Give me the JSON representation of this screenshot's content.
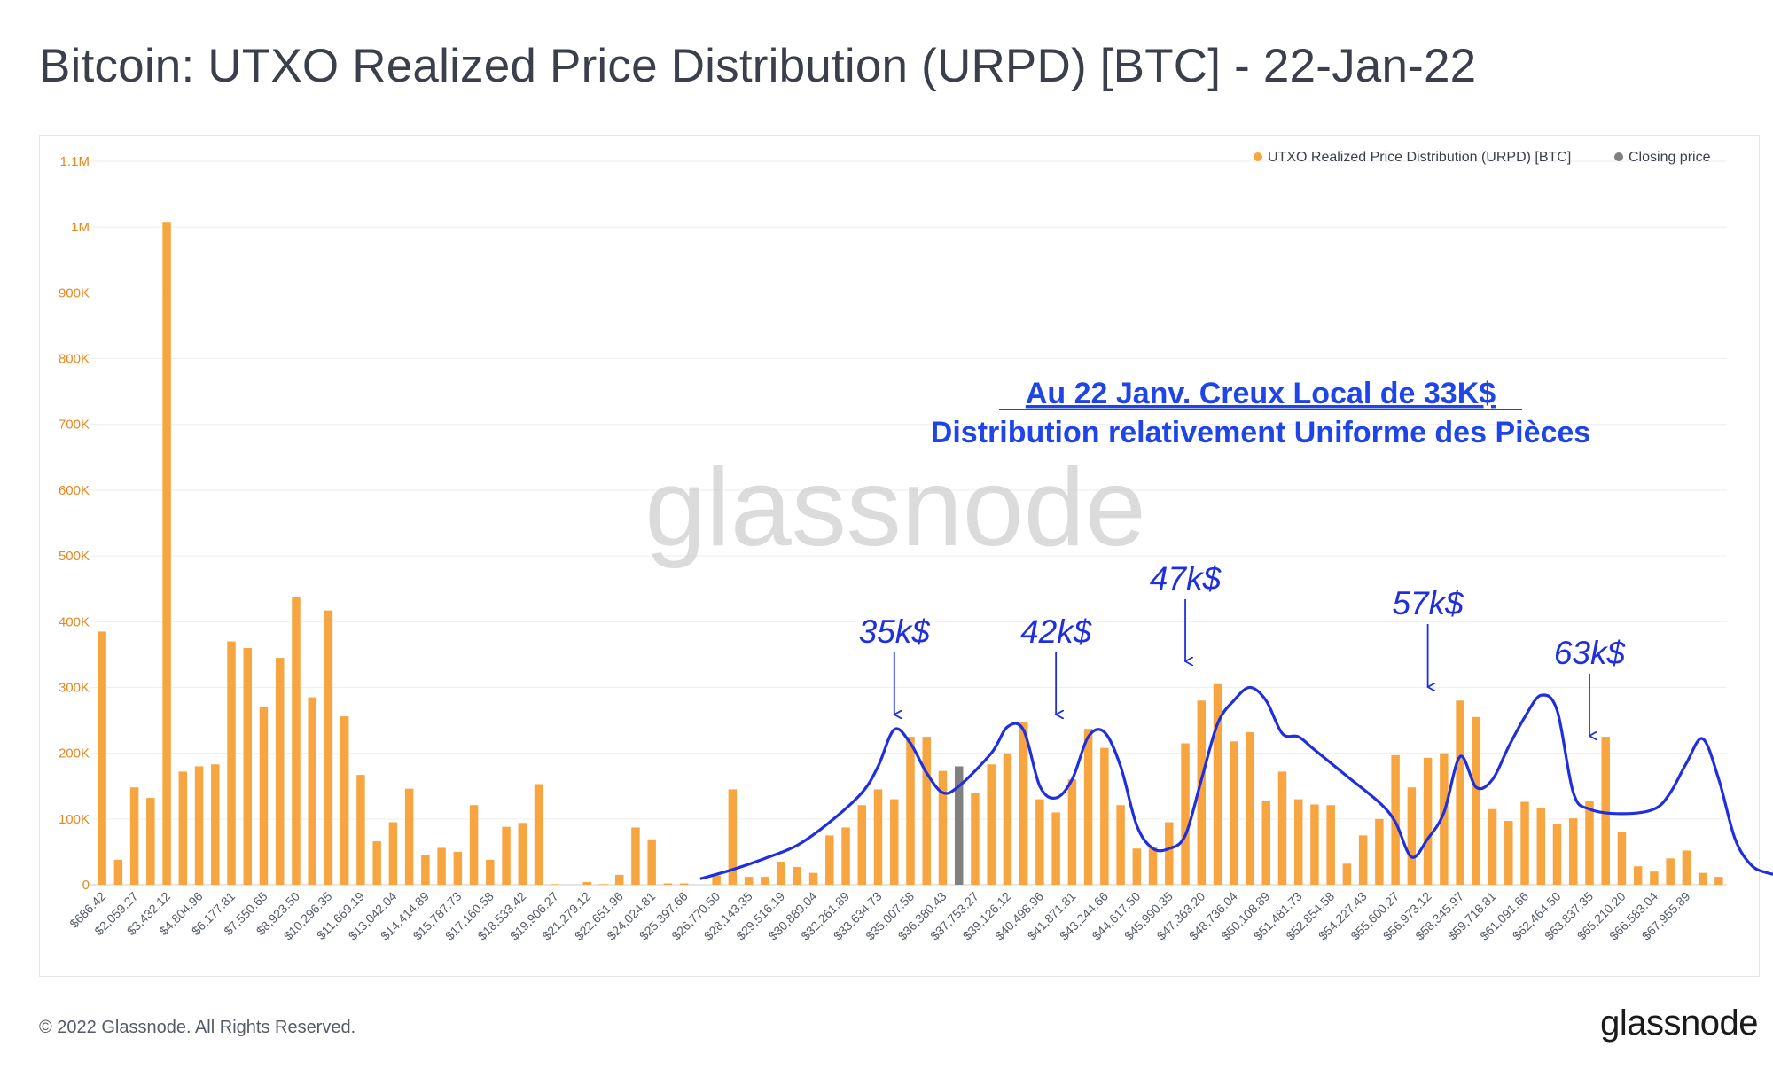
{
  "title": "Bitcoin: UTXO Realized Price Distribution (URPD) [BTC] - 22-Jan-22",
  "footer": {
    "copyright": "© 2022 Glassnode. All Rights Reserved.",
    "brand": "glassnode"
  },
  "watermark": "glassnode",
  "colors": {
    "bar": "#f7a541",
    "closing": "#808080",
    "annotation": "#1f2fe0",
    "grid": "#eeeeee",
    "tick": "#e8871e",
    "xtick": "#555b66"
  },
  "annotation": {
    "line1": "Au 22 Janv. Creux Local de 33K$",
    "line2": "Distribution relativement Uniforme des Pièces",
    "peaks": [
      {
        "label": "35k$",
        "bar": 49
      },
      {
        "label": "42k$",
        "bar": 59
      },
      {
        "label": "47k$",
        "bar": 67
      },
      {
        "label": "57k$",
        "bar": 82
      },
      {
        "label": "63k$",
        "bar": 92
      }
    ],
    "curve": [
      [
        37,
        9000
      ],
      [
        39,
        23000
      ],
      [
        41,
        40000
      ],
      [
        43,
        60000
      ],
      [
        45,
        95000
      ],
      [
        47,
        140000
      ],
      [
        48,
        180000
      ],
      [
        49,
        236000
      ],
      [
        50,
        215000
      ],
      [
        51,
        170000
      ],
      [
        52,
        140000
      ],
      [
        53,
        150000
      ],
      [
        55,
        200000
      ],
      [
        56,
        240000
      ],
      [
        57,
        235000
      ],
      [
        58,
        150000
      ],
      [
        59,
        132000
      ],
      [
        60,
        160000
      ],
      [
        61,
        225000
      ],
      [
        62,
        232000
      ],
      [
        63,
        180000
      ],
      [
        64,
        90000
      ],
      [
        65,
        55000
      ],
      [
        66,
        55000
      ],
      [
        67,
        75000
      ],
      [
        68,
        160000
      ],
      [
        69,
        245000
      ],
      [
        70,
        280000
      ],
      [
        71,
        300000
      ],
      [
        72,
        280000
      ],
      [
        73,
        230000
      ],
      [
        74,
        225000
      ],
      [
        75,
        205000
      ],
      [
        77,
        165000
      ],
      [
        79,
        125000
      ],
      [
        80,
        95000
      ],
      [
        81,
        42000
      ],
      [
        82,
        70000
      ],
      [
        83,
        110000
      ],
      [
        84,
        195000
      ],
      [
        85,
        148000
      ],
      [
        86,
        160000
      ],
      [
        87,
        210000
      ],
      [
        88,
        255000
      ],
      [
        89,
        288000
      ],
      [
        90,
        265000
      ],
      [
        91,
        140000
      ],
      [
        92,
        115000
      ],
      [
        94,
        108000
      ],
      [
        96,
        115000
      ],
      [
        97,
        140000
      ],
      [
        98,
        185000
      ],
      [
        99,
        222000
      ],
      [
        100,
        160000
      ],
      [
        101,
        70000
      ],
      [
        102,
        30000
      ],
      [
        103,
        18000
      ],
      [
        104,
        14000
      ],
      [
        105,
        13000
      ]
    ]
  },
  "chart_data": {
    "type": "bar",
    "title": "Bitcoin: UTXO Realized Price Distribution (URPD) [BTC] - 22-Jan-22",
    "xlabel": "",
    "ylabel": "",
    "ylim": [
      0,
      1100000
    ],
    "y_ticks": [
      0,
      100000,
      200000,
      300000,
      400000,
      500000,
      600000,
      700000,
      800000,
      900000,
      1000000,
      1100000
    ],
    "y_tick_labels": [
      "0",
      "100K",
      "200K",
      "300K",
      "400K",
      "500K",
      "600K",
      "700K",
      "800K",
      "900K",
      "1M",
      "1.1M"
    ],
    "legend": {
      "position": "top-right",
      "entries": [
        {
          "name": "UTXO Realized Price Distribution (URPD) [BTC]",
          "color": "#f7a541"
        },
        {
          "name": "Closing price",
          "color": "#808080"
        }
      ]
    },
    "x_tick_labels": [
      "$686.42",
      "$2,059.27",
      "$3,432.12",
      "$4,804.96",
      "$6,177.81",
      "$7,550.65",
      "$8,923.50",
      "$10,296.35",
      "$11,669.19",
      "$13,042.04",
      "$14,414.89",
      "$15,787.73",
      "$17,160.58",
      "$18,533.42",
      "$19,906.27",
      "$21,279.12",
      "$22,651.96",
      "$24,024.81",
      "$25,397.66",
      "$26,770.50",
      "$28,143.35",
      "$29,516.19",
      "$30,889.04",
      "$32,261.89",
      "$33,634.73",
      "$35,007.58",
      "$36,380.43",
      "$37,753.27",
      "$39,126.12",
      "$40,498.96",
      "$41,871.81",
      "$43,244.66",
      "$44,617.50",
      "$45,990.35",
      "$47,363.20",
      "$48,736.04",
      "$50,108.89",
      "$51,481.73",
      "$52,854.58",
      "$54,227.43",
      "$55,600.27",
      "$56,973.12",
      "$58,345.97",
      "$59,718.81",
      "$61,091.66",
      "$62,464.50",
      "$63,837.35",
      "$65,210.20",
      "$66,583.04",
      "$67,955.89"
    ],
    "series": [
      {
        "name": "UTXO Realized Price Distribution (URPD) [BTC]",
        "values": [
          385000,
          38000,
          148000,
          132000,
          1008000,
          172000,
          180000,
          183000,
          370000,
          360000,
          271000,
          345000,
          438000,
          285000,
          417000,
          256000,
          167000,
          66000,
          95000,
          146000,
          45000,
          56000,
          50000,
          121000,
          38000,
          88000,
          94000,
          153000,
          1000,
          0,
          4000,
          1000,
          15000,
          87000,
          69000,
          2000,
          2000,
          0,
          14000,
          145000,
          12000,
          12000,
          35000,
          27000,
          18000,
          75000,
          87000,
          121000,
          145000,
          130000,
          225000,
          225000,
          173000,
          180000,
          140000,
          183000,
          200000,
          248000,
          130000,
          110000,
          160000,
          237000,
          208000,
          121000,
          55000,
          58000,
          95000,
          215000,
          280000,
          305000,
          218000,
          232000,
          128000,
          172000,
          130000,
          122000,
          121000,
          32000,
          75000,
          100000,
          197000,
          148000,
          193000,
          200000,
          280000,
          255000,
          115000,
          97000,
          126000,
          117000,
          92000,
          101000,
          127000,
          225000,
          80000,
          28000,
          20000,
          40000,
          52000,
          18000,
          12000
        ]
      }
    ],
    "closing_price_bar": {
      "value": 180000,
      "index": 53
    }
  }
}
